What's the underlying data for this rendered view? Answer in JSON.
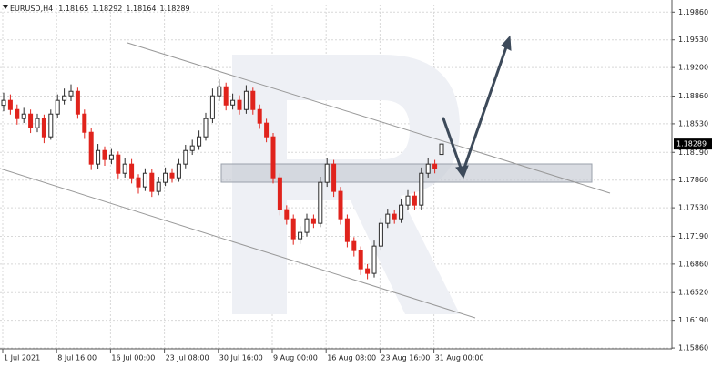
{
  "chart_data": {
    "type": "candlestick",
    "title": "EURUSD,H4",
    "categories": [
      "1 Jul 2021",
      null,
      null,
      null,
      null,
      null,
      null,
      null,
      "8 Jul 16:00",
      null,
      null,
      null,
      null,
      null,
      null,
      null,
      "16 Jul 00:00",
      null,
      null,
      null,
      null,
      null,
      null,
      null,
      "23 Jul 08:00",
      null,
      null,
      null,
      null,
      null,
      null,
      null,
      "30 Jul 16:00",
      null,
      null,
      null,
      null,
      null,
      null,
      null,
      "9 Aug 00:00",
      null,
      null,
      null,
      null,
      null,
      null,
      null,
      "16 Aug 08:00",
      null,
      null,
      null,
      null,
      null,
      null,
      null,
      "23 Aug 16:00",
      null,
      null,
      null,
      null,
      null,
      null,
      null,
      "31 Aug 00:00",
      null
    ],
    "open": [
      1.1875,
      1.18809,
      1.187,
      1.18592,
      1.18646,
      1.18483,
      1.18592,
      1.18375,
      1.18646,
      1.18809,
      1.18863,
      1.18917,
      1.18646,
      1.18429,
      1.1805,
      1.18212,
      1.18104,
      1.18158,
      1.17941,
      1.1805,
      1.17887,
      1.17779,
      1.17941,
      1.17725,
      1.17833,
      1.17941,
      1.17887,
      1.1805,
      1.18212,
      1.18267,
      1.18375,
      1.18592,
      1.18863,
      1.18971,
      1.18754,
      1.18809,
      1.187,
      1.18917,
      1.187,
      1.18538,
      1.18375,
      1.17887,
      1.17508,
      1.17399,
      1.17161,
      1.17237,
      1.17399,
      1.17345,
      1.17833,
      1.1805,
      1.17725,
      1.17399,
      1.17128,
      1.1702,
      1.16803,
      1.16749,
      1.17074,
      1.17345,
      1.17454,
      1.17399,
      1.17562,
      1.1767,
      1.17562,
      1.17941,
      1.1805,
      1.18165
    ],
    "high": [
      1.189,
      1.1888,
      1.1876,
      1.1872,
      1.187,
      1.1865,
      1.1864,
      1.187,
      1.1888,
      1.1895,
      1.19,
      1.1896,
      1.187,
      1.1848,
      1.1829,
      1.1826,
      1.1823,
      1.182,
      1.1812,
      1.1811,
      1.1793,
      1.18,
      1.1799,
      1.179,
      1.1801,
      1.18,
      1.1811,
      1.1828,
      1.1834,
      1.1845,
      1.1866,
      1.1895,
      1.1906,
      1.1902,
      1.1889,
      1.1887,
      1.1899,
      1.1896,
      1.1876,
      1.1859,
      1.1842,
      1.1794,
      1.1756,
      1.1745,
      1.1731,
      1.1746,
      1.1745,
      1.179,
      1.1812,
      1.181,
      1.1778,
      1.1745,
      1.1718,
      1.1707,
      1.1686,
      1.1714,
      1.1741,
      1.1752,
      1.1751,
      1.1763,
      1.1774,
      1.1772,
      1.1801,
      1.1812,
      1.181,
      1.18292
    ],
    "low": [
      1.1868,
      1.1864,
      1.1852,
      1.1854,
      1.1842,
      1.1843,
      1.183,
      1.1834,
      1.186,
      1.1876,
      1.188,
      1.1859,
      1.1835,
      1.1798,
      1.1799,
      1.1803,
      1.1805,
      1.1788,
      1.1789,
      1.1782,
      1.177,
      1.1773,
      1.1766,
      1.1768,
      1.1779,
      1.1783,
      1.1784,
      1.18,
      1.1816,
      1.1822,
      1.1833,
      1.1854,
      1.188,
      1.1869,
      1.187,
      1.1864,
      1.1865,
      1.1864,
      1.1847,
      1.1831,
      1.1782,
      1.1744,
      1.1733,
      1.1709,
      1.171,
      1.1719,
      1.1729,
      1.173,
      1.1778,
      1.1766,
      1.1733,
      1.1706,
      1.1695,
      1.1673,
      1.1668,
      1.167,
      1.1702,
      1.1729,
      1.1734,
      1.1735,
      1.1751,
      1.175,
      1.1751,
      1.1789,
      1.1794,
      1.18164
    ],
    "close": [
      1.18809,
      1.187,
      1.18592,
      1.18646,
      1.18483,
      1.18592,
      1.18375,
      1.18646,
      1.18809,
      1.18863,
      1.18917,
      1.18646,
      1.18429,
      1.1805,
      1.18212,
      1.18104,
      1.18158,
      1.17941,
      1.1805,
      1.17887,
      1.17779,
      1.17941,
      1.17725,
      1.17833,
      1.17941,
      1.17887,
      1.1805,
      1.18212,
      1.18267,
      1.18375,
      1.18592,
      1.18863,
      1.18971,
      1.18754,
      1.18809,
      1.187,
      1.18917,
      1.187,
      1.18538,
      1.18375,
      1.17887,
      1.17508,
      1.17399,
      1.17161,
      1.17237,
      1.17399,
      1.17345,
      1.17833,
      1.1805,
      1.17725,
      1.17399,
      1.17128,
      1.1702,
      1.16803,
      1.16749,
      1.17074,
      1.17345,
      1.17454,
      1.17399,
      1.17562,
      1.1767,
      1.17562,
      1.17941,
      1.1805,
      1.17996,
      1.18289
    ],
    "up_color": "#2b2b2b",
    "down_color": "#e0231c",
    "ylim": [
      1.1585,
      1.1995
    ],
    "yticks": [
      {
        "value": 1.1986,
        "label": "1.19860"
      },
      {
        "value": 1.1953,
        "label": "1.19530"
      },
      {
        "value": 1.192,
        "label": "1.19200"
      },
      {
        "value": 1.1886,
        "label": "1.18860"
      },
      {
        "value": 1.1853,
        "label": "1.18530"
      },
      {
        "value": 1.1819,
        "label": "1.18190"
      },
      {
        "value": 1.1786,
        "label": "1.17860"
      },
      {
        "value": 1.1753,
        "label": "1.17530"
      },
      {
        "value": 1.1719,
        "label": "1.17190"
      },
      {
        "value": 1.1686,
        "label": "1.16860"
      },
      {
        "value": 1.1652,
        "label": "1.16520"
      },
      {
        "value": 1.1619,
        "label": "1.16190"
      },
      {
        "value": 1.1586,
        "label": "1.15860"
      }
    ],
    "grid": true
  }
}
